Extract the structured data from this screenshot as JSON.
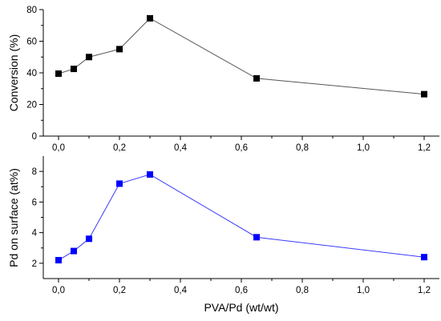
{
  "chart_data": [
    {
      "type": "line",
      "ylabel": "Conversion (%)",
      "xlabel": "",
      "ylim": [
        0,
        80
      ],
      "xlim": [
        -0.05,
        1.25
      ],
      "y_ticks": [
        "0",
        "20",
        "40",
        "60",
        "80"
      ],
      "x_ticks": [
        "0,0",
        "0,2",
        "0,4",
        "0,6",
        "0,8",
        "1,0",
        "1,2"
      ],
      "color": "#000000",
      "line_color": "#555555",
      "series": [
        {
          "x": [
            0.0,
            0.05,
            0.1,
            0.2,
            0.3,
            0.65,
            1.2
          ],
          "y": [
            39.5,
            42.5,
            50,
            55,
            74.5,
            36.5,
            26.5
          ]
        }
      ]
    },
    {
      "type": "line",
      "ylabel": "Pd on surface (at%)",
      "xlabel": "PVA/Pd (wt/wt)",
      "ylim": [
        1,
        9
      ],
      "xlim": [
        -0.05,
        1.25
      ],
      "y_ticks": [
        "2",
        "4",
        "6",
        "8"
      ],
      "x_ticks": [
        "0,0",
        "0,2",
        "0,4",
        "0,6",
        "0,8",
        "1,0",
        "1,2"
      ],
      "color": "#0000ff",
      "line_color": "#3a3aff",
      "series": [
        {
          "x": [
            0.0,
            0.05,
            0.1,
            0.2,
            0.3,
            0.65,
            1.2
          ],
          "y": [
            2.2,
            2.8,
            3.6,
            7.2,
            7.8,
            3.7,
            2.4
          ]
        }
      ]
    }
  ]
}
